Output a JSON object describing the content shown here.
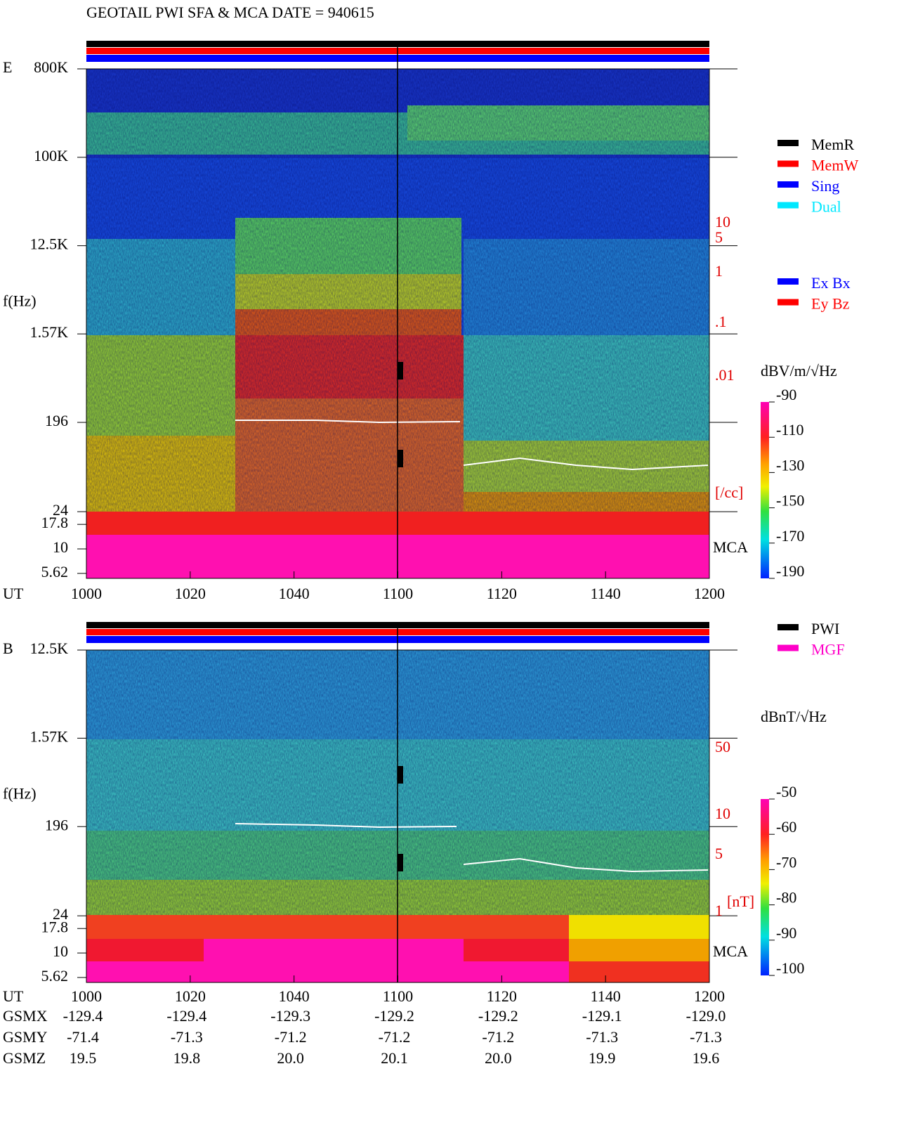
{
  "title": "GEOTAIL   PWI SFA & MCA   DATE = 940615",
  "chart_data": [
    {
      "type": "spectrogram",
      "panel_label": "E",
      "ylabel": "f(Hz)",
      "log_y": true,
      "ylim": [
        5,
        800000
      ],
      "yticks": [
        {
          "value": 800000,
          "label": "800K"
        },
        {
          "value": 100000,
          "label": "100K"
        },
        {
          "value": 12500,
          "label": "12.5K"
        },
        {
          "value": 1570,
          "label": "1.57K"
        },
        196,
        24,
        17.8,
        10,
        5.62
      ],
      "xlabel": "UT",
      "xtick_labels": [
        "1000",
        "1020",
        "1040",
        "1100",
        "1120",
        "1140",
        "1200"
      ],
      "mca_label": "MCA",
      "colorbar": {
        "label": "dBV/m/√Hz",
        "clim": [
          -190,
          -90
        ],
        "ticks": [
          -90,
          -110,
          -130,
          -150,
          -170,
          -190
        ]
      },
      "density_scale": {
        "ticks": [
          "10",
          "5",
          "1",
          ".1",
          ".01"
        ],
        "unit": "[/cc]"
      }
    },
    {
      "type": "spectrogram",
      "panel_label": "B",
      "ylabel": "f(Hz)",
      "log_y": true,
      "ylim": [
        5,
        12500
      ],
      "yticks": [
        {
          "value": 12500,
          "label": "12.5K"
        },
        {
          "value": 1570,
          "label": "1.57K"
        },
        196,
        24,
        17.8,
        10,
        5.62
      ],
      "xlabel": "UT",
      "xtick_labels": [
        "1000",
        "1020",
        "1040",
        "1100",
        "1120",
        "1140",
        "1200"
      ],
      "mca_label": "MCA",
      "colorbar": {
        "label": "dBnT/√Hz",
        "clim": [
          -100,
          -50
        ],
        "ticks": [
          -50,
          -60,
          -70,
          -80,
          -90,
          -100
        ]
      },
      "density_scale": {
        "ticks": [
          "50",
          "10",
          "5",
          "1"
        ],
        "unit": "[nT]"
      }
    }
  ],
  "legends": {
    "memory": [
      {
        "name": "MemR",
        "color": "#000000"
      },
      {
        "name": "MemW",
        "color": "#ff0000"
      },
      {
        "name": "Sing",
        "color": "#0000ff"
      },
      {
        "name": "Dual",
        "color": "#00e8ff"
      }
    ],
    "components": [
      {
        "name": "Ex Bx",
        "color": "#0000ff"
      },
      {
        "name": "Ey Bz",
        "color": "#ff0000"
      }
    ],
    "source": [
      {
        "name": "PWI",
        "color": "#000000"
      },
      {
        "name": "MGF",
        "color": "#ff00c8"
      }
    ]
  },
  "orbit": {
    "rows": [
      {
        "name": "GSMX",
        "values": [
          "-129.4",
          "-129.4",
          "-129.3",
          "-129.2",
          "-129.2",
          "-129.1",
          "-129.0"
        ]
      },
      {
        "name": "GSMY",
        "values": [
          "-71.4",
          "-71.3",
          "-71.2",
          "-71.2",
          "-71.2",
          "-71.3",
          "-71.3"
        ]
      },
      {
        "name": "GSMZ",
        "values": [
          "19.5",
          "19.8",
          "20.0",
          "20.1",
          "20.0",
          "19.9",
          "19.6"
        ]
      }
    ]
  }
}
